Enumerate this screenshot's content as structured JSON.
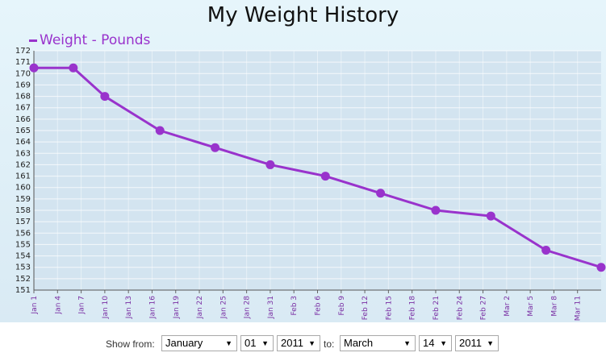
{
  "title": "My Weight History",
  "chart_data": {
    "type": "line",
    "title": "My Weight History",
    "series": [
      {
        "name": "Weight - Pounds",
        "color": "#9933cc",
        "points": [
          {
            "x": "2011-01-01",
            "y": 170.5
          },
          {
            "x": "2011-01-06",
            "y": 170.5
          },
          {
            "x": "2011-01-10",
            "y": 168
          },
          {
            "x": "2011-01-17",
            "y": 165
          },
          {
            "x": "2011-01-24",
            "y": 163.5
          },
          {
            "x": "2011-01-31",
            "y": 162
          },
          {
            "x": "2011-02-07",
            "y": 161
          },
          {
            "x": "2011-02-14",
            "y": 159.5
          },
          {
            "x": "2011-02-21",
            "y": 158
          },
          {
            "x": "2011-02-28",
            "y": 157.5
          },
          {
            "x": "2011-03-07",
            "y": 154.5
          },
          {
            "x": "2011-03-14",
            "y": 153
          }
        ]
      }
    ],
    "x_ticks": [
      "Jan 1",
      "Jan 4",
      "Jan 7",
      "Jan 10",
      "Jan 13",
      "Jan 16",
      "Jan 19",
      "Jan 22",
      "Jan 25",
      "Jan 28",
      "Jan 31",
      "Feb 3",
      "Feb 6",
      "Feb 9",
      "Feb 12",
      "Feb 15",
      "Feb 18",
      "Feb 21",
      "Feb 24",
      "Feb 27",
      "Mar 2",
      "Mar 5",
      "Mar 8",
      "Mar 11"
    ],
    "xlim": [
      "2011-01-01",
      "2011-03-14"
    ],
    "ylim": [
      151,
      172
    ],
    "y_ticks": [
      151,
      152,
      153,
      154,
      155,
      156,
      157,
      158,
      159,
      160,
      161,
      162,
      163,
      164,
      165,
      166,
      167,
      168,
      169,
      170,
      171,
      172
    ],
    "grid": true,
    "legend_position": "top-left"
  },
  "controls": {
    "show_from_label": "Show from:",
    "from_month": "January",
    "from_day": "01",
    "from_year": "2011",
    "to_label": "to:",
    "to_month": "March",
    "to_day": "14",
    "to_year": "2011"
  }
}
